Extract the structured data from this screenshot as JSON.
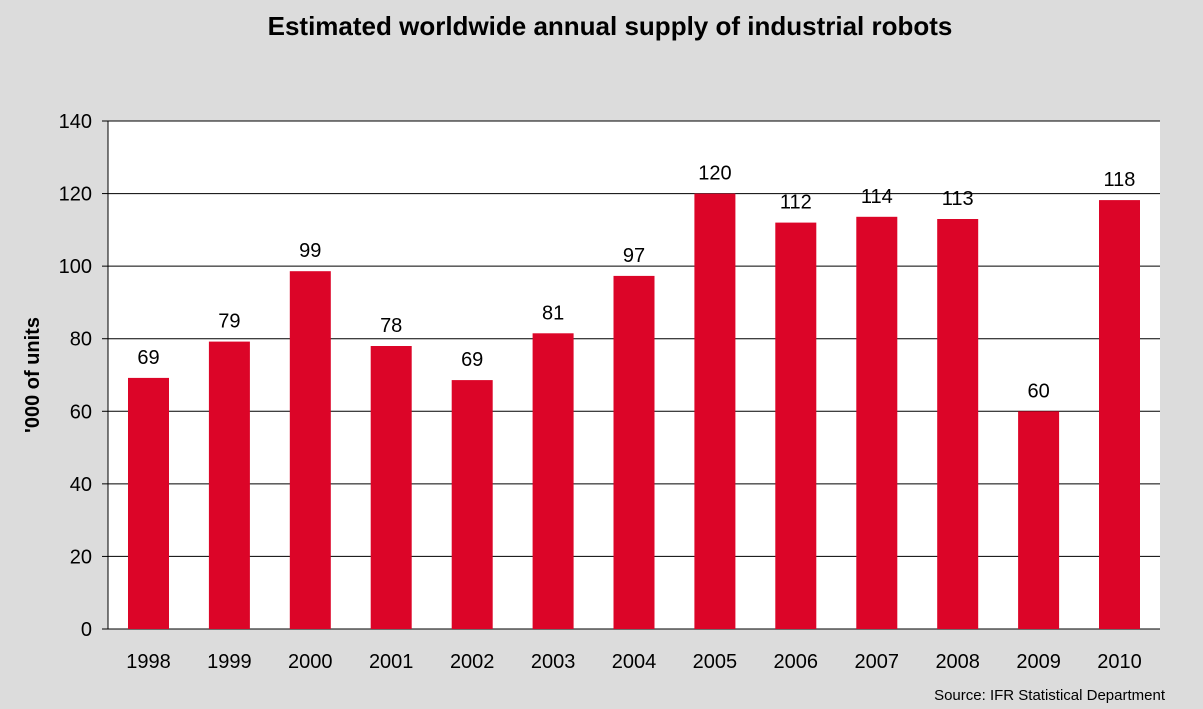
{
  "chart_data": {
    "type": "bar",
    "title": "Estimated worldwide annual supply of industrial robots",
    "xlabel": "",
    "ylabel": "'000 of units",
    "categories": [
      "1998",
      "1999",
      "2000",
      "2001",
      "2002",
      "2003",
      "2004",
      "2005",
      "2006",
      "2007",
      "2008",
      "2009",
      "2010"
    ],
    "values": [
      69,
      79,
      99,
      78,
      69,
      81,
      97,
      120,
      112,
      114,
      113,
      60,
      118
    ],
    "data_labels": [
      "69",
      "79",
      "99",
      "78",
      "69",
      "81",
      "97",
      "120",
      "112",
      "114",
      "113",
      "60",
      "118"
    ],
    "heights_in_units": [
      69.2,
      79.2,
      98.6,
      78.0,
      68.6,
      81.5,
      97.3,
      120.0,
      112.0,
      113.6,
      113.0,
      60.0,
      118.2
    ],
    "ylim": [
      0,
      140
    ],
    "yticks": [
      0,
      20,
      40,
      60,
      80,
      100,
      120,
      140
    ],
    "ytick_labels": [
      "0",
      "20",
      "40",
      "60",
      "80",
      "100",
      "120",
      "140"
    ],
    "grid": true,
    "legend": "none",
    "source": "Source: IFR Statistical Department",
    "colors": {
      "bar": "#dc0528",
      "background": "#dcdcdc",
      "plot_background": "#ffffff",
      "grid": "#000000",
      "text": "#000000"
    }
  }
}
